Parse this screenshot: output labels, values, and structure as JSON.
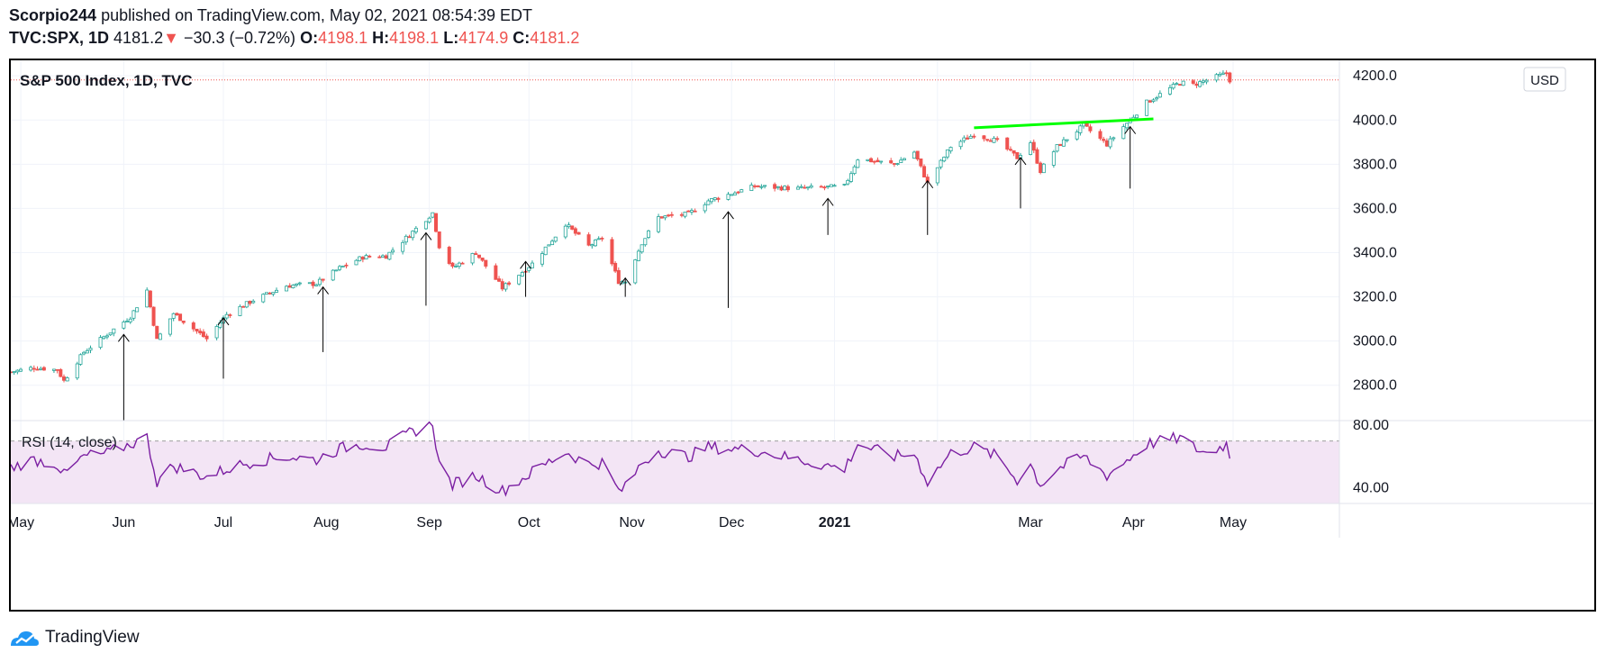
{
  "header": {
    "author": "Scorpio244",
    "published": "published on TradingView.com, May 02, 2021 08:54:39 EDT",
    "symbol": "TVC:SPX, 1D",
    "last": "4181.2",
    "change_arrow": "▼",
    "change": "−30.3 (−0.72%)",
    "o_label": "O:",
    "o": "4198.1",
    "h_label": "H:",
    "h": "4198.1",
    "l_label": "L:",
    "l": "4174.9",
    "c_label": "C:",
    "c": "4181.2"
  },
  "footer": {
    "brand": "TradingView",
    "logo_icon": "tradingview-logo-icon"
  },
  "colors": {
    "up": "#26a69a",
    "down": "#ef5350",
    "rsi_line": "#7b1fa2",
    "rsi_band": "#f3e5f5",
    "trendline": "#00ff00",
    "arrow": "#000000"
  },
  "chart_data": [
    {
      "type": "candlestick",
      "title": "S&P 500 Index, 1D, TVC",
      "currency": "USD",
      "ylim": [
        2640,
        4270
      ],
      "y_ticks": [
        "2800.0",
        "3000.0",
        "3200.0",
        "3400.0",
        "3600.0",
        "3800.0",
        "4000.0",
        "4200.0"
      ],
      "price_line": 4181.2,
      "x_ticks": [
        "May",
        "Jun",
        "Jul",
        "Aug",
        "Sep",
        "Oct",
        "Nov",
        "Dec",
        "2021",
        "Mar",
        "Apr",
        "May"
      ],
      "x_range": [
        "2020-04-28",
        "2021-06-02"
      ],
      "grid": true,
      "close_path": [
        [
          "2020-04-28",
          2860
        ],
        [
          "2020-05-05",
          2880
        ],
        [
          "2020-05-12",
          2870
        ],
        [
          "2020-05-14",
          2820
        ],
        [
          "2020-05-20",
          2950
        ],
        [
          "2020-05-27",
          3030
        ],
        [
          "2020-06-03",
          3110
        ],
        [
          "2020-06-08",
          3230
        ],
        [
          "2020-06-11",
          3005
        ],
        [
          "2020-06-16",
          3125
        ],
        [
          "2020-06-26",
          3010
        ],
        [
          "2020-07-02",
          3120
        ],
        [
          "2020-07-10",
          3185
        ],
        [
          "2020-07-20",
          3250
        ],
        [
          "2020-07-29",
          3260
        ],
        [
          "2020-08-05",
          3330
        ],
        [
          "2020-08-12",
          3380
        ],
        [
          "2020-08-19",
          3385
        ],
        [
          "2020-08-26",
          3480
        ],
        [
          "2020-09-02",
          3580
        ],
        [
          "2020-09-04",
          3430
        ],
        [
          "2020-09-08",
          3330
        ],
        [
          "2020-09-15",
          3400
        ],
        [
          "2020-09-23",
          3240
        ],
        [
          "2020-10-02",
          3350
        ],
        [
          "2020-10-12",
          3530
        ],
        [
          "2020-10-19",
          3430
        ],
        [
          "2020-10-23",
          3465
        ],
        [
          "2020-10-28",
          3270
        ],
        [
          "2020-10-30",
          3270
        ],
        [
          "2020-11-04",
          3445
        ],
        [
          "2020-11-09",
          3560
        ],
        [
          "2020-11-18",
          3575
        ],
        [
          "2020-11-24",
          3635
        ],
        [
          "2020-12-08",
          3700
        ],
        [
          "2020-12-21",
          3690
        ],
        [
          "2021-01-04",
          3700
        ],
        [
          "2021-01-08",
          3825
        ],
        [
          "2021-01-19",
          3800
        ],
        [
          "2021-01-25",
          3855
        ],
        [
          "2021-01-29",
          3715
        ],
        [
          "2021-02-05",
          3880
        ],
        [
          "2021-02-12",
          3935
        ],
        [
          "2021-02-19",
          3905
        ],
        [
          "2021-02-25",
          3830
        ],
        [
          "2021-03-01",
          3900
        ],
        [
          "2021-03-04",
          3770
        ],
        [
          "2021-03-09",
          3880
        ],
        [
          "2021-03-17",
          3975
        ],
        [
          "2021-03-24",
          3890
        ],
        [
          "2021-03-29",
          3970
        ],
        [
          "2021-04-05",
          4080
        ],
        [
          "2021-04-15",
          4170
        ],
        [
          "2021-04-19",
          4160
        ],
        [
          "2021-04-23",
          4180
        ],
        [
          "2021-04-29",
          4211
        ],
        [
          "2021-04-30",
          4181.2
        ]
      ],
      "trendline": {
        "start": [
          "2021-02-12",
          3965
        ],
        "end": [
          "2021-04-07",
          4005
        ]
      },
      "arrows": [
        {
          "date": "2020-06-01",
          "from": 2640,
          "to": 3030
        },
        {
          "date": "2020-07-01",
          "from": 2830,
          "to": 3105
        },
        {
          "date": "2020-07-31",
          "from": 2950,
          "to": 3245
        },
        {
          "date": "2020-08-31",
          "from": 3160,
          "to": 3490
        },
        {
          "date": "2020-09-30",
          "from": 3200,
          "to": 3360
        },
        {
          "date": "2020-10-30",
          "from": 3200,
          "to": 3285
        },
        {
          "date": "2020-11-30",
          "from": 3150,
          "to": 3585
        },
        {
          "date": "2020-12-30",
          "from": 3480,
          "to": 3645
        },
        {
          "date": "2021-01-29",
          "from": 3480,
          "to": 3725
        },
        {
          "date": "2021-02-26",
          "from": 3600,
          "to": 3830
        },
        {
          "date": "2021-03-31",
          "from": 3690,
          "to": 3970
        }
      ]
    },
    {
      "type": "line",
      "title": "RSI (14, close)",
      "ylim": [
        30,
        83
      ],
      "y_ticks": [
        "40.00",
        "80.00"
      ],
      "band": [
        30,
        70
      ],
      "values": [
        [
          "2020-04-28",
          53
        ],
        [
          "2020-05-05",
          58
        ],
        [
          "2020-05-12",
          55
        ],
        [
          "2020-05-14",
          48
        ],
        [
          "2020-05-20",
          60
        ],
        [
          "2020-05-27",
          62
        ],
        [
          "2020-06-03",
          68
        ],
        [
          "2020-06-08",
          72
        ],
        [
          "2020-06-11",
          44
        ],
        [
          "2020-06-16",
          54
        ],
        [
          "2020-06-26",
          47
        ],
        [
          "2020-07-02",
          52
        ],
        [
          "2020-07-10",
          57
        ],
        [
          "2020-07-20",
          60
        ],
        [
          "2020-07-29",
          58
        ],
        [
          "2020-08-05",
          65
        ],
        [
          "2020-08-12",
          68
        ],
        [
          "2020-08-19",
          66
        ],
        [
          "2020-08-26",
          75
        ],
        [
          "2020-09-02",
          82
        ],
        [
          "2020-09-04",
          55
        ],
        [
          "2020-09-08",
          42
        ],
        [
          "2020-09-15",
          48
        ],
        [
          "2020-09-23",
          38
        ],
        [
          "2020-10-02",
          50
        ],
        [
          "2020-10-12",
          63
        ],
        [
          "2020-10-19",
          55
        ],
        [
          "2020-10-23",
          56
        ],
        [
          "2020-10-28",
          38
        ],
        [
          "2020-10-30",
          40
        ],
        [
          "2020-11-04",
          56
        ],
        [
          "2020-11-09",
          64
        ],
        [
          "2020-11-18",
          60
        ],
        [
          "2020-11-24",
          66
        ],
        [
          "2020-12-08",
          64
        ],
        [
          "2020-12-21",
          58
        ],
        [
          "2021-01-04",
          52
        ],
        [
          "2021-01-08",
          68
        ],
        [
          "2021-01-19",
          60
        ],
        [
          "2021-01-25",
          62
        ],
        [
          "2021-01-29",
          44
        ],
        [
          "2021-02-05",
          62
        ],
        [
          "2021-02-12",
          66
        ],
        [
          "2021-02-19",
          60
        ],
        [
          "2021-02-25",
          45
        ],
        [
          "2021-03-01",
          55
        ],
        [
          "2021-03-04",
          42
        ],
        [
          "2021-03-09",
          52
        ],
        [
          "2021-03-17",
          60
        ],
        [
          "2021-03-24",
          48
        ],
        [
          "2021-03-29",
          56
        ],
        [
          "2021-04-05",
          68
        ],
        [
          "2021-04-15",
          72
        ],
        [
          "2021-04-19",
          66
        ],
        [
          "2021-04-23",
          62
        ],
        [
          "2021-04-29",
          68
        ],
        [
          "2021-04-30",
          60
        ]
      ]
    }
  ]
}
